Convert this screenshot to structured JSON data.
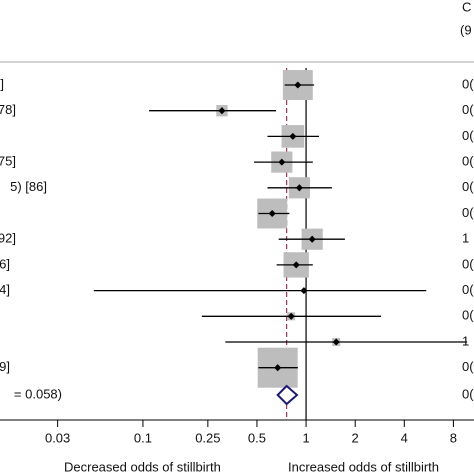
{
  "chart_data": {
    "type": "forest",
    "header": [
      "C",
      "(9"
    ],
    "categories": [
      "]",
      "78]",
      null,
      "75]",
      "5) [86]",
      null,
      "92]",
      "6]",
      "4]",
      null,
      null,
      "9]"
    ],
    "values": [
      0.89,
      0.305,
      0.83,
      0.71,
      0.91,
      0.62,
      1.09,
      0.87,
      0.97,
      0.81,
      1.53,
      0.67
    ],
    "ci_low": [
      0.74,
      0.109,
      0.58,
      0.48,
      0.58,
      0.51,
      0.68,
      0.66,
      0.05,
      0.23,
      0.32,
      0.51
    ],
    "ci_high": [
      1.12,
      0.655,
      1.2,
      1.1,
      1.44,
      0.79,
      1.73,
      1.1,
      5.45,
      2.88,
      9.7,
      0.89
    ],
    "weights": [
      14,
      2,
      8,
      7,
      7,
      14,
      7,
      10,
      0.2,
      1,
      1,
      25
    ],
    "right_labels": [
      "0(",
      "0(",
      "0(",
      "0(",
      "0(",
      "0(",
      "1",
      "0(",
      "0(",
      "0(",
      "1",
      "0("
    ],
    "pooled": {
      "label": "= 0.058)",
      "value": 0.76,
      "ci_low": 0.67,
      "ci_high": 0.88,
      "right_label": "0("
    },
    "null_value": 1,
    "log_x": true,
    "xlim": [
      0.0133,
      10.7
    ],
    "xticks": [
      0.03,
      0.1,
      0.25,
      0.5,
      1,
      2,
      4,
      8
    ],
    "x_annotations": [
      "Decreased odds of stillbirth",
      "Increased odds of stillbirth"
    ],
    "box_color": "#bdbdbd",
    "mark_color": "#000000",
    "pooled_color": "#1c1c78",
    "ref_line_color": "#a3334f"
  }
}
